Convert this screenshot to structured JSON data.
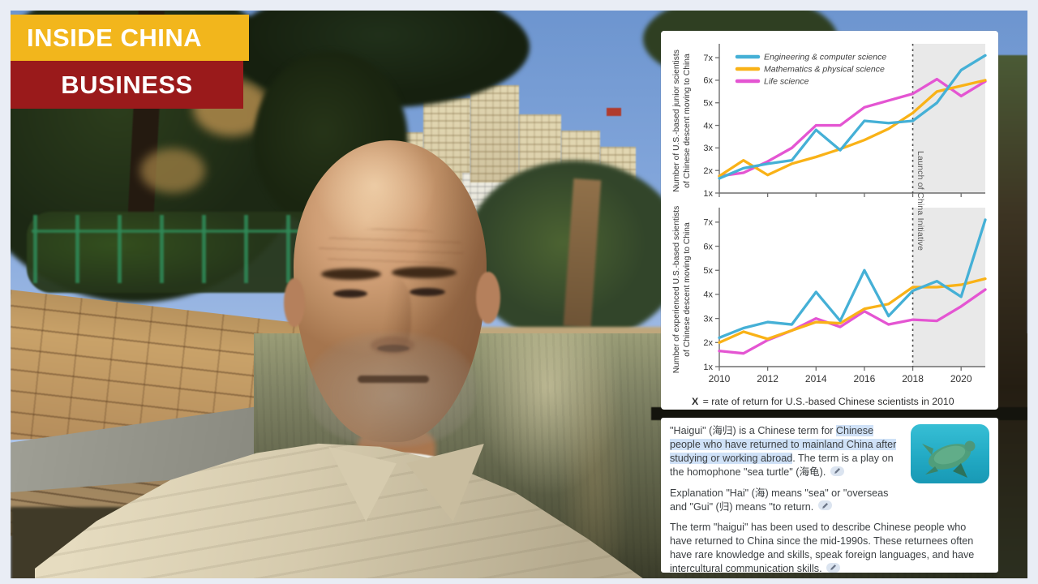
{
  "banner": {
    "line1": "INSIDE CHINA",
    "line2": "BUSINESS",
    "line1_bg": "#F2B61C",
    "line2_bg": "#9A1A1B"
  },
  "chart_card": {
    "launch_label": "Launch of China Initiative",
    "caption_bold": "X",
    "caption_text": " = rate of return for U.S.-based Chinese scientists in 2010",
    "shade_color": "#e9e9e9"
  },
  "chart_data": [
    {
      "type": "line",
      "ylabel": "Number of U.S.-based junior scientists of Chinese descent moving to China",
      "ylabel_lines": [
        "Number of U.S.-based junior scientists",
        "of Chinese descent moving to China"
      ],
      "x": [
        2010,
        2011,
        2012,
        2013,
        2014,
        2015,
        2016,
        2017,
        2018,
        2019,
        2020,
        2021
      ],
      "x_tick_labels": [
        "2010",
        "2012",
        "2014",
        "2016",
        "2018",
        "2020"
      ],
      "y_tick_labels": [
        "1x",
        "2x",
        "3x",
        "4x",
        "5x",
        "6x",
        "7x"
      ],
      "ylim": [
        1,
        7.4
      ],
      "legend_position": "top-left",
      "grid": false,
      "annotation": {
        "vline_x": 2018,
        "shade_from": 2018,
        "shade_to": 2021
      },
      "series": [
        {
          "name": "Engineering & computer science",
          "color": "#45b0d6",
          "values": [
            1.65,
            2.1,
            2.3,
            2.45,
            3.8,
            2.9,
            4.2,
            4.1,
            4.2,
            5.0,
            6.45,
            7.1
          ]
        },
        {
          "name": "Mathematics & physical science",
          "color": "#f9b217",
          "values": [
            1.75,
            2.45,
            1.8,
            2.3,
            2.6,
            2.95,
            3.35,
            3.85,
            4.55,
            5.5,
            5.75,
            6.0
          ]
        },
        {
          "name": "Life science",
          "color": "#e455d2",
          "values": [
            1.75,
            1.9,
            2.4,
            3.0,
            4.0,
            4.0,
            4.8,
            5.1,
            5.4,
            6.05,
            5.3,
            5.95
          ]
        }
      ]
    },
    {
      "type": "line",
      "ylabel": "Number of experienced U.S.-based scientists of Chinese descent moving to China",
      "ylabel_lines": [
        "Number of experienced U.S.-based scientists",
        "of Chinese descent moving to China"
      ],
      "x": [
        2010,
        2011,
        2012,
        2013,
        2014,
        2015,
        2016,
        2017,
        2018,
        2019,
        2020,
        2021
      ],
      "x_tick_labels": [
        "2010",
        "2012",
        "2014",
        "2016",
        "2018",
        "2020"
      ],
      "y_tick_labels": [
        "1x",
        "2x",
        "3x",
        "4x",
        "5x",
        "6x",
        "7x"
      ],
      "ylim": [
        1,
        7.4
      ],
      "grid": false,
      "annotation": {
        "vline_x": 2018,
        "shade_from": 2018,
        "shade_to": 2021
      },
      "series": [
        {
          "name": "Engineering & computer science",
          "color": "#45b0d6",
          "values": [
            2.2,
            2.6,
            2.85,
            2.75,
            4.1,
            2.9,
            5.0,
            3.1,
            4.15,
            4.55,
            3.9,
            7.1
          ]
        },
        {
          "name": "Mathematics & physical science",
          "color": "#f9b217",
          "values": [
            2.0,
            2.45,
            2.15,
            2.5,
            2.85,
            2.8,
            3.4,
            3.6,
            4.3,
            4.3,
            4.4,
            4.65
          ]
        },
        {
          "name": "Life science",
          "color": "#e455d2",
          "values": [
            1.65,
            1.55,
            2.1,
            2.5,
            3.0,
            2.65,
            3.3,
            2.75,
            2.95,
            2.9,
            3.5,
            4.2
          ]
        }
      ]
    }
  ],
  "haigui_card": {
    "highlight_color": "#cfe1f7",
    "link_icon": "pencil-link-icon",
    "paragraphs": [
      [
        {
          "t": "\"Haigui\" (海归) is a Chinese term for ",
          "hl": false
        },
        {
          "t": "Chinese people who have returned to mainland China after studying or working abroad",
          "hl": true
        },
        {
          "t": ". The term is a play on the homophone \"sea turtle\" (海龟). ",
          "hl": false
        },
        {
          "icon": true
        }
      ],
      [
        {
          "t": "Explanation \"Hai\" (海) means \"sea\" or \"overseas and \"Gui\" (归) means \"to return. ",
          "hl": false
        },
        {
          "icon": true
        }
      ],
      [
        {
          "t": "The term \"haigui\" has been used to describe Chinese people who have returned to China since the mid-1990s. These returnees often have rare knowledge and skills, speak foreign languages, and have intercultural communication skills. ",
          "hl": false
        },
        {
          "icon": true
        }
      ]
    ]
  }
}
